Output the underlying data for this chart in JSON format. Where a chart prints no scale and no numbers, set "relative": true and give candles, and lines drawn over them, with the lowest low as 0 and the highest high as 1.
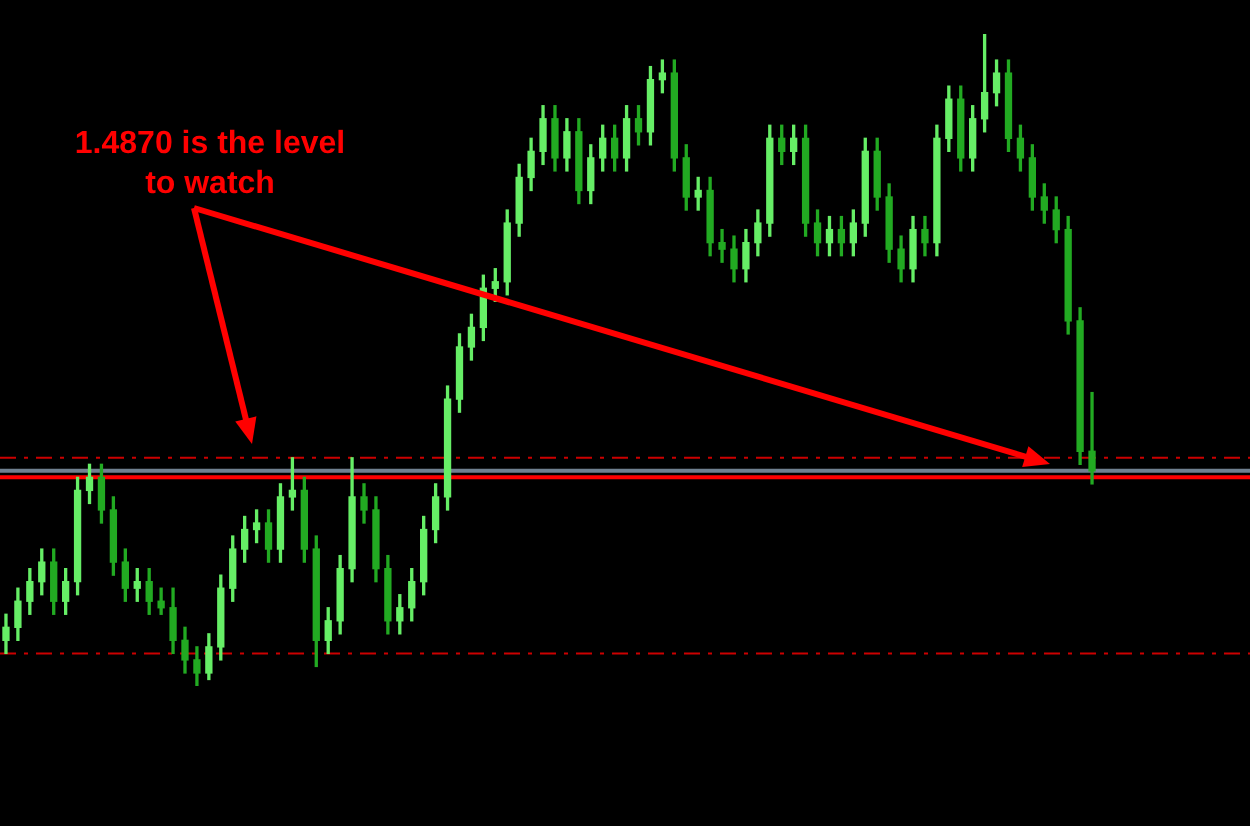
{
  "chart_data": {
    "type": "candlestick",
    "relative": true,
    "colors": [
      "#66ee66",
      "#66ee66",
      "#66ee66",
      "#66ee66",
      "#22aa22",
      "#66ee66",
      "#66ee66",
      "#66ee66",
      "#22aa22",
      "#22aa22",
      "#22aa22",
      "#66ee66",
      "#22aa22",
      "#22aa22",
      "#22aa22",
      "#22aa22",
      "#22aa22",
      "#66ee66",
      "#66ee66",
      "#66ee66",
      "#66ee66",
      "#66ee66",
      "#22aa22",
      "#66ee66",
      "#66ee66",
      "#22aa22",
      "#22aa22",
      "#66ee66",
      "#66ee66",
      "#66ee66",
      "#22aa22",
      "#22aa22",
      "#22aa22",
      "#66ee66",
      "#66ee66",
      "#66ee66",
      "#66ee66",
      "#66ee66",
      "#66ee66",
      "#66ee66",
      "#66ee66",
      "#66ee66",
      "#66ee66",
      "#66ee66",
      "#66ee66",
      "#66ee66",
      "#22aa22",
      "#66ee66",
      "#22aa22",
      "#66ee66",
      "#66ee66",
      "#22aa22",
      "#66ee66",
      "#22aa22",
      "#66ee66",
      "#66ee66",
      "#22aa22",
      "#22aa22",
      "#66ee66",
      "#22aa22",
      "#22aa22",
      "#22aa22",
      "#66ee66",
      "#66ee66",
      "#66ee66",
      "#22aa22",
      "#66ee66",
      "#22aa22",
      "#22aa22",
      "#66ee66",
      "#22aa22",
      "#66ee66",
      "#66ee66",
      "#22aa22",
      "#22aa22",
      "#22aa22",
      "#66ee66",
      "#22aa22",
      "#66ee66",
      "#66ee66",
      "#22aa22",
      "#66ee66",
      "#66ee66",
      "#66ee66",
      "#22aa22",
      "#22aa22",
      "#22aa22",
      "#22aa22",
      "#22aa22",
      "#22aa22",
      "#22aa22",
      "#22aa22"
    ],
    "annotations": [
      "1.4870 is the level to watch"
    ],
    "ref_lines": [
      {
        "axis": "y",
        "value": 0.35,
        "color": "#cc0000",
        "line_style": "dashed"
      },
      {
        "axis": "y",
        "value": 0.33,
        "color": "#708090"
      },
      {
        "axis": "y",
        "value": 0.32,
        "color": "#ff0000"
      },
      {
        "axis": "y",
        "value": 0.05,
        "color": "#cc0000",
        "line_style": "dashed"
      }
    ],
    "categories": [
      null,
      null,
      null,
      null,
      null,
      null,
      null,
      null,
      null,
      null,
      null,
      null,
      null,
      null,
      null,
      null,
      null,
      null,
      null,
      null,
      null,
      null,
      null,
      null,
      null,
      null,
      null,
      null,
      null,
      null,
      null,
      null,
      null,
      null,
      null,
      null,
      null,
      null,
      null,
      null,
      null,
      null,
      null,
      null,
      null,
      null,
      null,
      null,
      null,
      null,
      null,
      null,
      null,
      null,
      null,
      null,
      null,
      null,
      null,
      null,
      null,
      null,
      null,
      null,
      null,
      null,
      null,
      null,
      null,
      null,
      null,
      null,
      null,
      null,
      null,
      null,
      null,
      null,
      null,
      null,
      null,
      null,
      null,
      null,
      null,
      null,
      null,
      null,
      null,
      null,
      null,
      null
    ],
    "ohlc": [
      [
        0.07,
        0.11,
        0.05,
        0.09
      ],
      [
        0.09,
        0.15,
        0.07,
        0.13
      ],
      [
        0.13,
        0.18,
        0.11,
        0.16
      ],
      [
        0.16,
        0.21,
        0.14,
        0.19
      ],
      [
        0.19,
        0.21,
        0.11,
        0.13
      ],
      [
        0.13,
        0.18,
        0.11,
        0.16
      ],
      [
        0.16,
        0.32,
        0.14,
        0.3
      ],
      [
        0.3,
        0.34,
        0.28,
        0.32
      ],
      [
        0.32,
        0.34,
        0.25,
        0.27
      ],
      [
        0.27,
        0.29,
        0.17,
        0.19
      ],
      [
        0.19,
        0.21,
        0.13,
        0.15
      ],
      [
        0.15,
        0.18,
        0.13,
        0.16
      ],
      [
        0.16,
        0.18,
        0.11,
        0.13
      ],
      [
        0.13,
        0.15,
        0.11,
        0.12
      ],
      [
        0.12,
        0.15,
        0.05,
        0.07
      ],
      [
        0.07,
        0.09,
        0.02,
        0.04
      ],
      [
        0.04,
        0.06,
        0,
        0.02
      ],
      [
        0.02,
        0.08,
        0.01,
        0.06
      ],
      [
        0.06,
        0.17,
        0.04,
        0.15
      ],
      [
        0.15,
        0.23,
        0.13,
        0.21
      ],
      [
        0.21,
        0.26,
        0.19,
        0.24
      ],
      [
        0.24,
        0.27,
        0.22,
        0.25
      ],
      [
        0.25,
        0.27,
        0.19,
        0.21
      ],
      [
        0.21,
        0.31,
        0.19,
        0.29
      ],
      [
        0.29,
        0.35,
        0.27,
        0.3
      ],
      [
        0.3,
        0.32,
        0.19,
        0.21
      ],
      [
        0.21,
        0.23,
        0.03,
        0.07
      ],
      [
        0.07,
        0.12,
        0.05,
        0.1
      ],
      [
        0.1,
        0.2,
        0.08,
        0.18
      ],
      [
        0.18,
        0.35,
        0.16,
        0.29
      ],
      [
        0.29,
        0.31,
        0.25,
        0.27
      ],
      [
        0.27,
        0.29,
        0.16,
        0.18
      ],
      [
        0.18,
        0.2,
        0.08,
        0.1
      ],
      [
        0.1,
        0.14,
        0.08,
        0.12
      ],
      [
        0.12,
        0.18,
        0.1,
        0.16
      ],
      [
        0.16,
        0.26,
        0.14,
        0.24
      ],
      [
        0.24,
        0.31,
        0.22,
        0.29
      ],
      [
        0.29,
        0.46,
        0.27,
        0.44
      ],
      [
        0.44,
        0.54,
        0.42,
        0.52
      ],
      [
        0.52,
        0.57,
        0.5,
        0.55
      ],
      [
        0.55,
        0.63,
        0.53,
        0.61
      ],
      [
        0.61,
        0.64,
        0.59,
        0.62
      ],
      [
        0.62,
        0.73,
        0.6,
        0.71
      ],
      [
        0.71,
        0.8,
        0.69,
        0.78
      ],
      [
        0.78,
        0.84,
        0.76,
        0.82
      ],
      [
        0.82,
        0.89,
        0.8,
        0.87
      ],
      [
        0.87,
        0.89,
        0.79,
        0.81
      ],
      [
        0.81,
        0.87,
        0.79,
        0.85
      ],
      [
        0.85,
        0.87,
        0.74,
        0.76
      ],
      [
        0.76,
        0.83,
        0.74,
        0.81
      ],
      [
        0.81,
        0.86,
        0.79,
        0.84
      ],
      [
        0.84,
        0.86,
        0.79,
        0.81
      ],
      [
        0.81,
        0.89,
        0.79,
        0.87
      ],
      [
        0.87,
        0.89,
        0.83,
        0.85
      ],
      [
        0.85,
        0.95,
        0.83,
        0.93
      ],
      [
        0.93,
        0.96,
        0.91,
        0.94
      ],
      [
        0.94,
        0.96,
        0.79,
        0.81
      ],
      [
        0.81,
        0.83,
        0.73,
        0.75
      ],
      [
        0.75,
        0.78,
        0.73,
        0.76
      ],
      [
        0.76,
        0.78,
        0.66,
        0.68
      ],
      [
        0.68,
        0.7,
        0.65,
        0.67
      ],
      [
        0.67,
        0.69,
        0.62,
        0.64
      ],
      [
        0.64,
        0.7,
        0.62,
        0.68
      ],
      [
        0.68,
        0.73,
        0.66,
        0.71
      ],
      [
        0.71,
        0.86,
        0.69,
        0.84
      ],
      [
        0.84,
        0.86,
        0.8,
        0.82
      ],
      [
        0.82,
        0.86,
        0.8,
        0.84
      ],
      [
        0.84,
        0.86,
        0.69,
        0.71
      ],
      [
        0.71,
        0.73,
        0.66,
        0.68
      ],
      [
        0.68,
        0.72,
        0.66,
        0.7
      ],
      [
        0.7,
        0.72,
        0.66,
        0.68
      ],
      [
        0.68,
        0.73,
        0.66,
        0.71
      ],
      [
        0.71,
        0.84,
        0.69,
        0.82
      ],
      [
        0.82,
        0.84,
        0.73,
        0.75
      ],
      [
        0.75,
        0.77,
        0.65,
        0.67
      ],
      [
        0.67,
        0.69,
        0.62,
        0.64
      ],
      [
        0.64,
        0.72,
        0.62,
        0.7
      ],
      [
        0.7,
        0.72,
        0.66,
        0.68
      ],
      [
        0.68,
        0.86,
        0.66,
        0.84
      ],
      [
        0.84,
        0.92,
        0.82,
        0.9
      ],
      [
        0.9,
        0.92,
        0.79,
        0.81
      ],
      [
        0.81,
        0.89,
        0.79,
        0.87
      ],
      [
        0.87,
        1,
        0.85,
        0.91
      ],
      [
        0.91,
        0.96,
        0.89,
        0.94
      ],
      [
        0.94,
        0.96,
        0.82,
        0.84
      ],
      [
        0.84,
        0.86,
        0.79,
        0.81
      ],
      [
        0.81,
        0.83,
        0.73,
        0.75
      ],
      [
        0.75,
        0.77,
        0.71,
        0.73
      ],
      [
        0.73,
        0.75,
        0.68,
        0.7
      ],
      [
        0.7,
        0.72,
        0.54,
        0.56
      ],
      [
        0.56,
        0.58,
        0.34,
        0.36
      ],
      [
        0.36,
        0.45,
        0.31,
        0.33
      ]
    ]
  }
}
